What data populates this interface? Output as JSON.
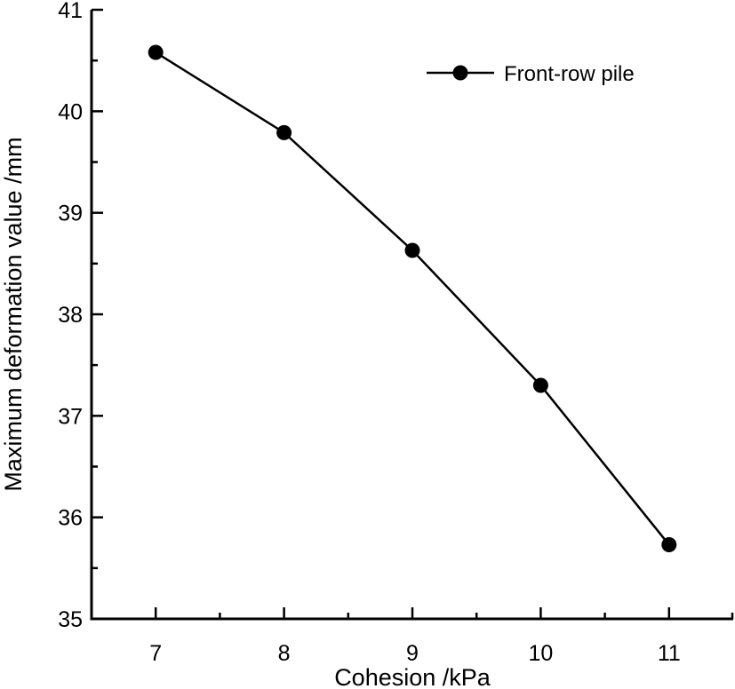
{
  "chart_data": {
    "type": "line",
    "title": "",
    "xlabel": "Cohesion /kPa",
    "ylabel": "Maximum deformation value /mm",
    "x": [
      7,
      8,
      9,
      10,
      11
    ],
    "series": [
      {
        "name": "Front-row pile",
        "values": [
          40.58,
          39.79,
          38.63,
          37.3,
          35.73
        ],
        "color": "#000000",
        "marker": "filled-circle"
      }
    ],
    "xlim": [
      6.5,
      11.5
    ],
    "ylim": [
      35,
      41
    ],
    "xticks": [
      7,
      8,
      9,
      10,
      11
    ],
    "yticks": [
      35,
      36,
      37,
      38,
      39,
      40,
      41
    ],
    "grid": false,
    "legend_position": "upper right"
  },
  "labels": {
    "xlabel": "Cohesion /kPa",
    "ylabel": "Maximum deformation value /mm",
    "legend": "Front-row pile",
    "xticks": [
      "7",
      "8",
      "9",
      "10",
      "11"
    ],
    "yticks": [
      "35",
      "36",
      "37",
      "38",
      "39",
      "40",
      "41"
    ]
  }
}
